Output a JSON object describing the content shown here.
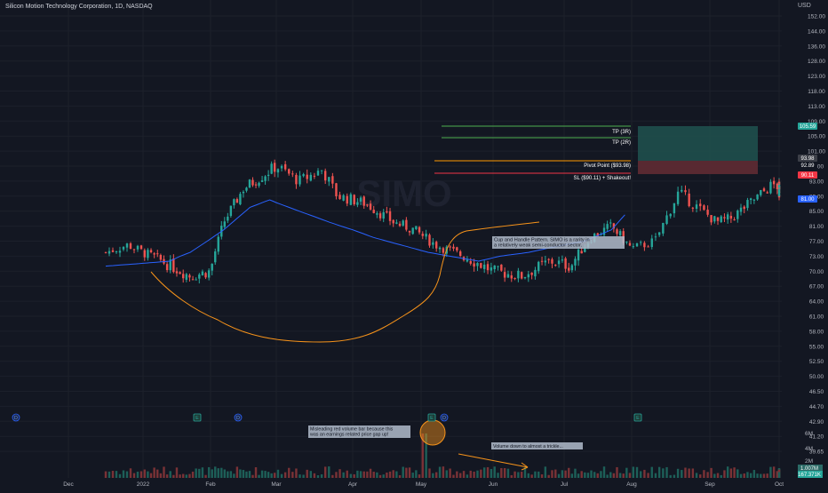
{
  "header": {
    "symbol_title": "Silicon Motion Technology Corporation, 1D, NASDAQ",
    "currency": "USD"
  },
  "colors": {
    "background": "#131722",
    "up": "#26a69a",
    "down": "#ef5350",
    "ma_line": "#2962ff",
    "cup_line": "#f7931a",
    "tp_line": "#4caf50",
    "pivot_line": "#ff9800",
    "sl_line": "#f23645",
    "highlight_box": "#21b0fe"
  },
  "chart_data": {
    "type": "line",
    "y_axis": {
      "scale": "log",
      "ticks": [
        "152.00",
        "144.00",
        "136.00",
        "128.00",
        "123.00",
        "118.00",
        "113.00",
        "109.00",
        "105.00",
        "101.00",
        "97.00",
        "93.00",
        "89.00",
        "85.00",
        "81.00",
        "77.00",
        "73.00",
        "70.00",
        "67.00",
        "64.00",
        "61.00",
        "58.00",
        "55.00",
        "52.50",
        "50.00",
        "46.50",
        "44.70",
        "42.90",
        "41.20",
        "39.65"
      ]
    },
    "x_axis": {
      "ticks": [
        "Dec",
        "2022",
        "Feb",
        "Mar",
        "Apr",
        "May",
        "Jun",
        "Jul",
        "Aug",
        "Sep",
        "Oct"
      ]
    },
    "volume_axis": {
      "ticks": [
        "6M",
        "4M",
        "2M"
      ]
    },
    "price_labels": [
      {
        "text": "105.59",
        "role": "take-profit-3r"
      },
      {
        "text": "93.98",
        "role": "pivot"
      },
      {
        "text": "92.89",
        "role": "last-price"
      },
      {
        "text": "90.11",
        "role": "stop-loss"
      },
      {
        "text": "81.00",
        "role": "moving-average"
      }
    ],
    "volume_labels": [
      "1.007M",
      "167.371K"
    ],
    "series": [
      {
        "name": "",
        "type": "candlestick",
        "approx_path": [
          [
            74,
            0.5
          ],
          [
            76,
            0.8
          ],
          [
            74,
            1.0
          ],
          [
            69,
            1.7
          ],
          [
            70,
            2.0
          ],
          [
            82,
            2.2
          ],
          [
            91,
            2.5
          ],
          [
            97,
            3.0
          ],
          [
            93,
            3.3
          ],
          [
            96,
            3.6
          ],
          [
            89,
            3.8
          ],
          [
            87,
            4.2
          ],
          [
            82,
            4.6
          ],
          [
            80,
            4.9
          ],
          [
            76,
            5.2
          ],
          [
            73,
            5.6
          ],
          [
            70,
            6.0
          ],
          [
            69,
            6.4
          ],
          [
            72,
            6.8
          ],
          [
            71,
            7.1
          ],
          [
            78,
            7.4
          ],
          [
            81,
            7.7
          ],
          [
            75,
            8.0
          ],
          [
            77,
            8.3
          ],
          [
            90,
            8.6
          ],
          [
            85,
            8.9
          ],
          [
            82,
            9.1
          ],
          [
            83,
            9.3
          ],
          [
            86,
            9.5
          ],
          [
            92,
            9.9
          ],
          [
            91,
            10.1
          ],
          [
            90,
            10.3
          ],
          [
            91,
            10.5
          ]
        ]
      },
      {
        "name": "",
        "type": "moving-average",
        "approx_path": [
          [
            71,
            0.5
          ],
          [
            72,
            1.4
          ],
          [
            74,
            1.7
          ],
          [
            80,
            2.2
          ],
          [
            86,
            2.6
          ],
          [
            88,
            2.9
          ],
          [
            85,
            3.3
          ],
          [
            82,
            3.7
          ],
          [
            78,
            4.3
          ],
          [
            76,
            4.7
          ],
          [
            74,
            5.1
          ],
          [
            73,
            5.4
          ],
          [
            72,
            5.8
          ],
          [
            73,
            6.1
          ],
          [
            74,
            6.5
          ],
          [
            76,
            7.0
          ],
          [
            77,
            7.3
          ],
          [
            80,
            7.7
          ],
          [
            84,
            7.9
          ]
        ]
      }
    ],
    "levels": [
      {
        "label": "TP (3R)",
        "value": 105.59
      },
      {
        "label": "TP (2R)",
        "value": 101.5
      },
      {
        "label": "Pivot Point ($93.98)",
        "value": 93.98
      },
      {
        "label": "SL ($90.11) + Shakeout!",
        "value": 90.11
      }
    ],
    "annotations": [
      "Cup and Handle Pattern. SIMO is a rarity in a relatively weak semi-conductor sector.",
      "Misleading red volume bar because this was an earnings related price gap up!",
      "Volume down to almost a trickle..."
    ],
    "event_markers": [
      "D",
      "E",
      "D",
      "E",
      "D",
      "E"
    ],
    "watermark": "SIMO"
  }
}
